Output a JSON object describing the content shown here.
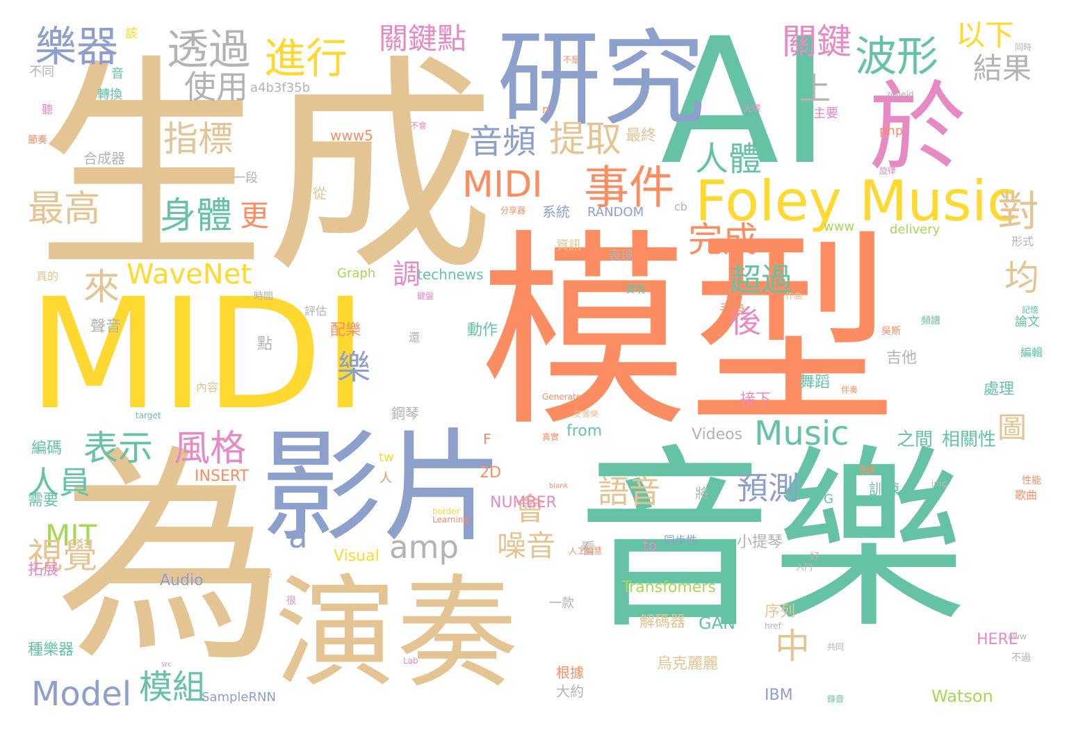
{
  "palette": {
    "green": "#66c2a5",
    "orange": "#fc8d62",
    "blue": "#8da0cb",
    "pink": "#e78ac3",
    "lime": "#a6d854",
    "yellow": "#ffd92f",
    "tan": "#e5c494",
    "gray": "#b3b3b3"
  },
  "words": [
    "生成",
    "AI",
    "模型",
    "MIDI",
    "為",
    "音樂",
    "研究",
    "影片",
    "演奏",
    "於",
    "樂器",
    "透過",
    "進行",
    "關鍵點",
    "波形",
    "關鍵",
    "以下",
    "結果",
    "使用",
    "上",
    "指標",
    "音頻",
    "提取",
    "最終",
    "人體",
    "MIDI",
    "事件",
    "Foley Music",
    "最高",
    "身體",
    "更",
    "來",
    "對",
    "完成",
    "WaveNet",
    "超過",
    "均",
    "後",
    "樂",
    "調",
    "表示",
    "風格",
    "人員",
    "Music",
    "中",
    "預測",
    "語音",
    "MIT",
    "amp",
    "會",
    "噪音",
    "a",
    "視覺",
    "Model",
    "模組",
    "Videos",
    "之間",
    "相關性",
    "圖",
    "from",
    "Audio",
    "Visual",
    "Transfomers",
    "解碼器",
    "GAN",
    "烏克麗麗",
    "Watson",
    "IBM",
    "SampleRNN",
    "大約",
    "根據",
    "序列",
    "NUMBER",
    "INSERT",
    "2D",
    "tw",
    "F",
    "HERE",
    "種樂器",
    "編碼",
    "需要",
    "拓展",
    "聲音",
    "點",
    "配樂",
    "動作",
    "吉他",
    "舞蹈",
    "處理",
    "接下",
    "鋼琴",
    "小提琴",
    "看",
    "to",
    "同步性",
    "訓練",
    "將",
    "G",
    "系統",
    "RANDOM",
    "cb",
    "www",
    "delivery",
    "資訊",
    "表現",
    "手勢",
    "php",
    "主要",
    "technews",
    "Graph",
    "a4b3f35b",
    "www5",
    "合成器",
    "一段",
    "從",
    "轉換",
    "音",
    "不同",
    "聽",
    "該",
    "n",
    "論文",
    "編輯",
    "歌曲",
    "性能",
    "形式",
    "一款",
    "好",
    "內容",
    "評估",
    "時間",
    "真的",
    "還",
    "很",
    "最",
    "人",
    "吳斯",
    "頻譜",
    "記憶",
    "人工智慧",
    "img",
    "blank",
    "border",
    "Learning",
    "Generate",
    "target",
    "src",
    "Lab",
    "href",
    "aww",
    "zoneid",
    "光環",
    "不會",
    "實現",
    "真實",
    "共同",
    "不過",
    "入門",
    "音調",
    "交響樂",
    "節奏",
    "分享器",
    "鍵盤",
    "伴奏",
    "錄音",
    "同時",
    "不是",
    "旋律",
    "作曲",
    "吉他手"
  ]
}
